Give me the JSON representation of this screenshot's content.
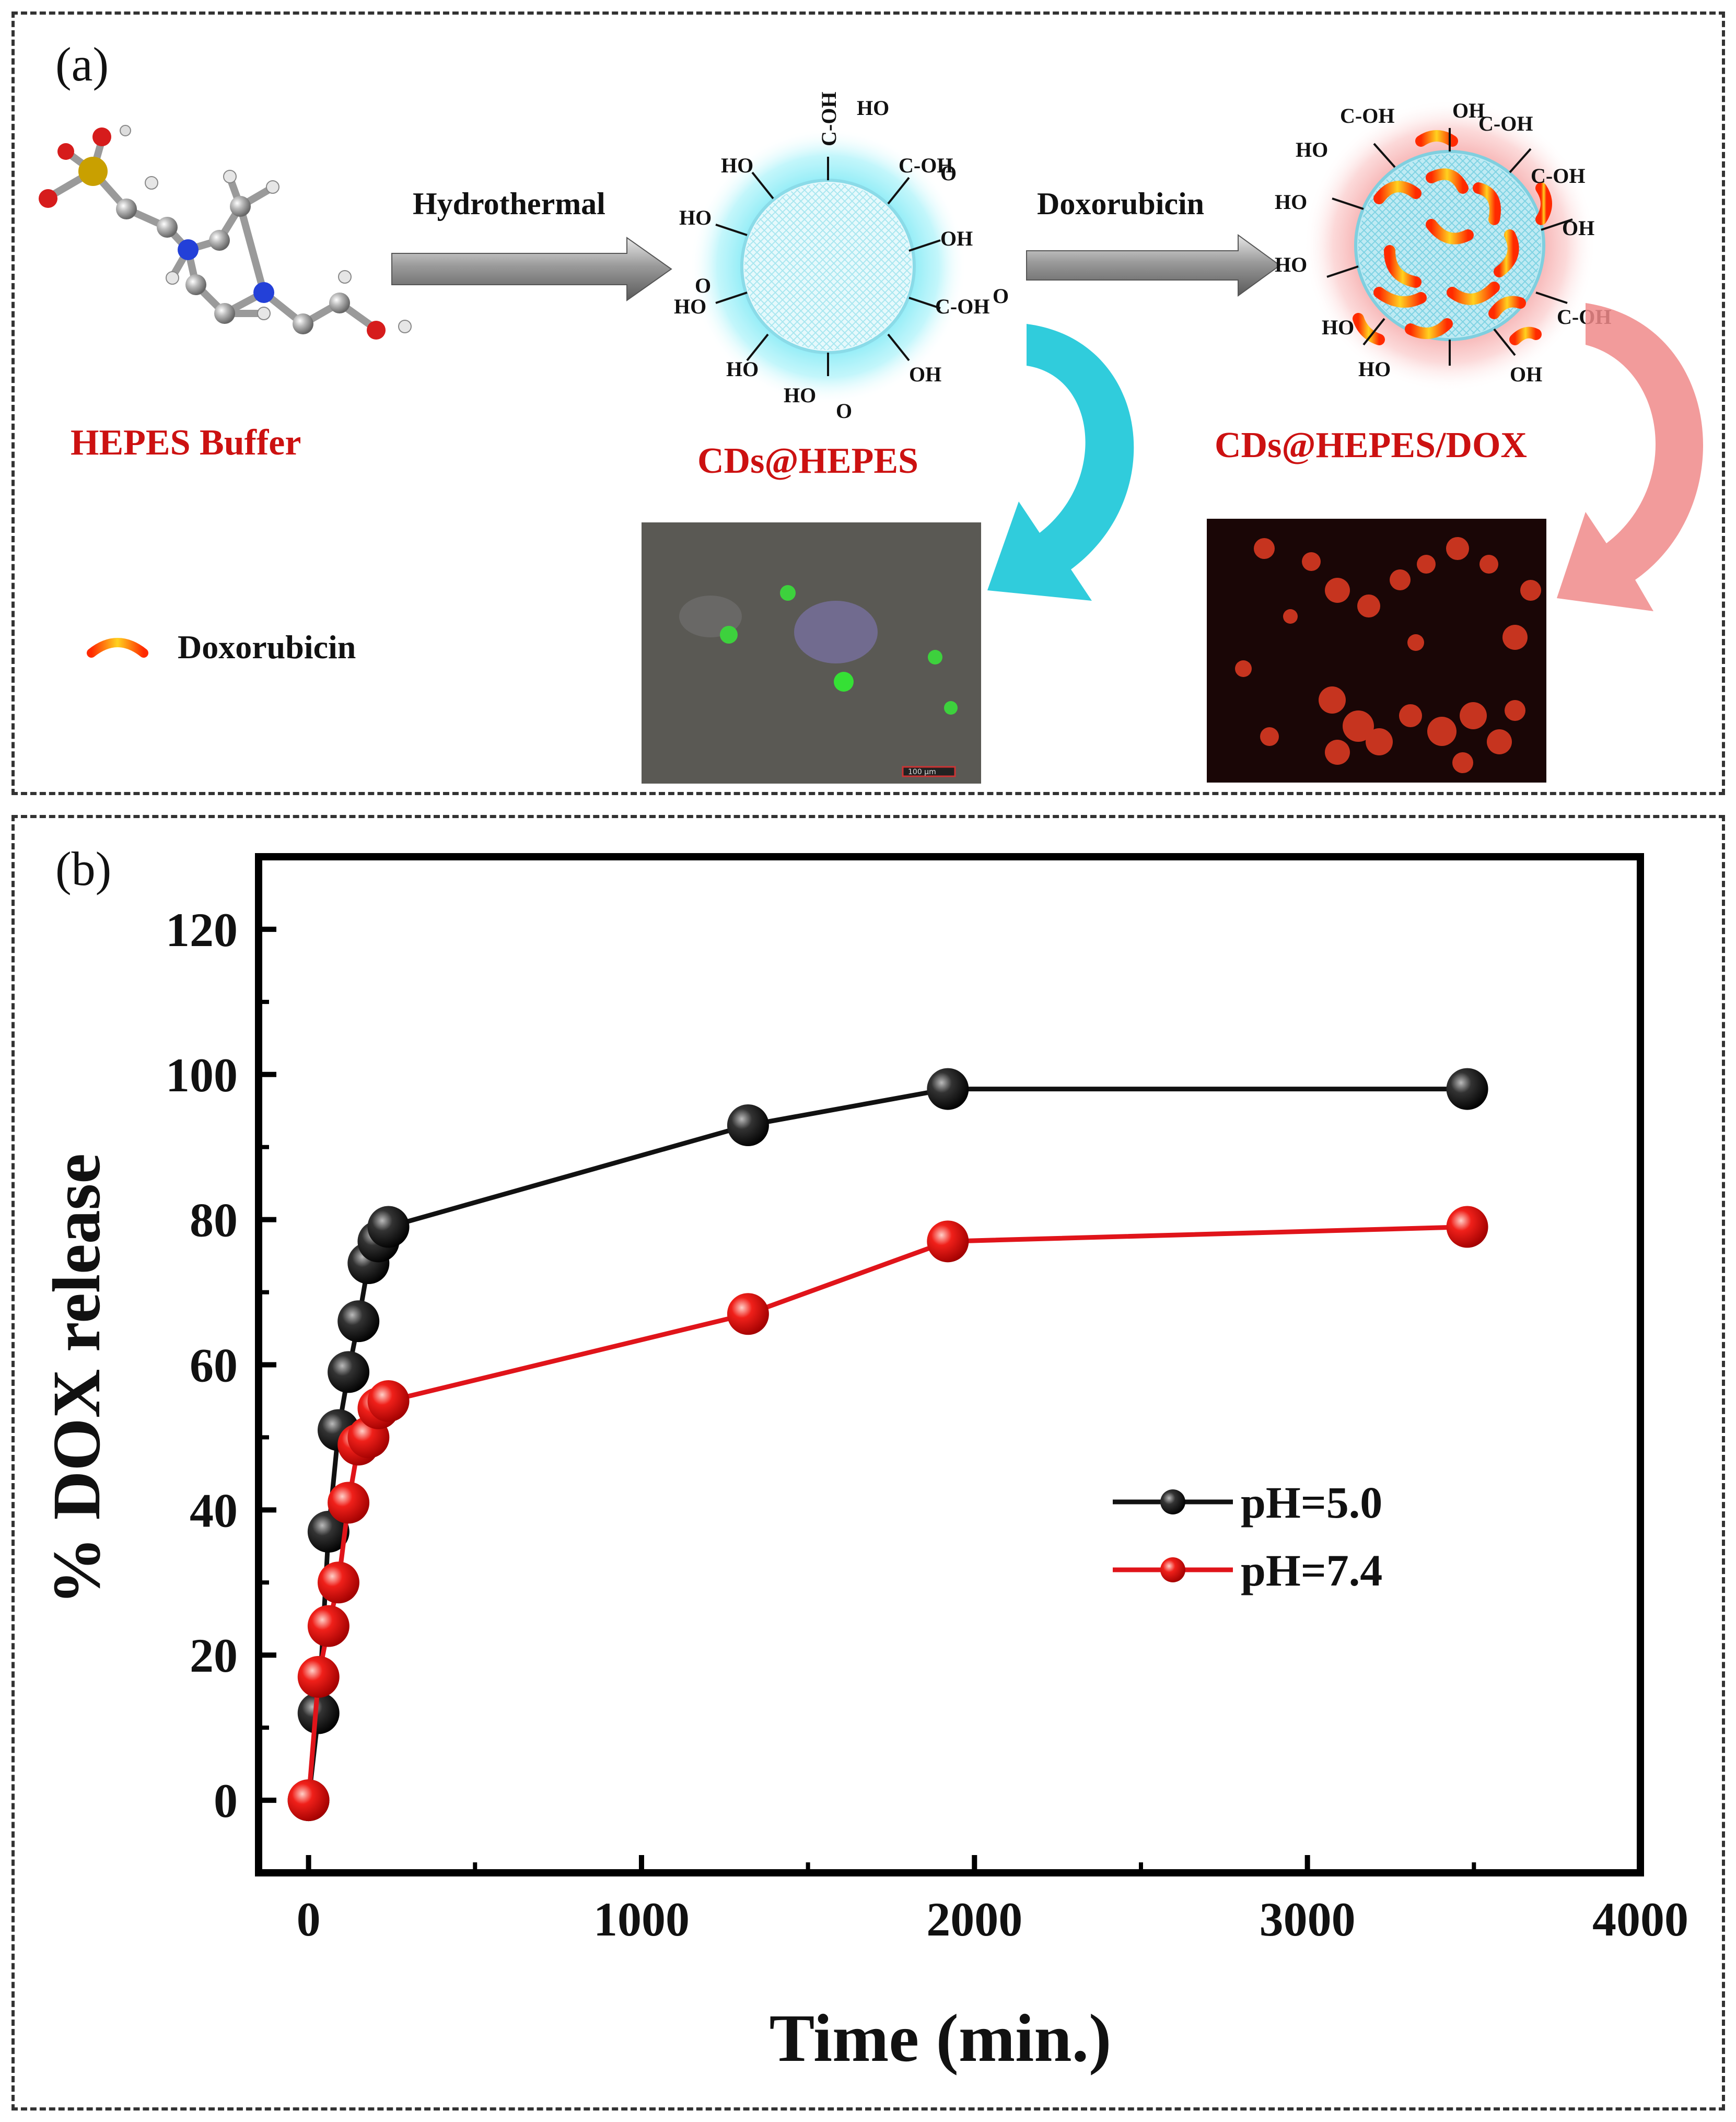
{
  "panel_a": {
    "label": "(a)",
    "hepes_label": "HEPES Buffer",
    "step1": "Hydrothermal",
    "step2": "Doxorubicin",
    "cd_label": "CDs@HEPES",
    "cd_dox_label": "CDs@HEPES/DOX",
    "legend_text": "Doxorubicin",
    "scale_bar_text": "100 µm",
    "chem": {
      "cooh": "C-OH",
      "oh": "OH",
      "ho": "HO",
      "o": "O"
    },
    "colors": {
      "cyan_glow": "#5fe0f0",
      "pink_glow": "#f7a0a0",
      "arrow_cyan": "#19c6d8",
      "arrow_pink": "#f08a8a",
      "title_red": "#cc1111",
      "dox_orange": "#f36a10",
      "dox_yellow": "#ffd21f"
    }
  },
  "panel_b": {
    "label": "(b)",
    "chart_data": {
      "type": "line",
      "xlabel": "Time (min.)",
      "ylabel": "% DOX release",
      "xlim": [
        -150,
        4000
      ],
      "ylim": [
        -10,
        130
      ],
      "xticks": [
        0,
        1000,
        2000,
        3000,
        4000
      ],
      "yticks": [
        0,
        20,
        40,
        60,
        80,
        100,
        120
      ],
      "legend_position": "center-right",
      "series": [
        {
          "name": "pH=5.0",
          "color": "#111111",
          "x": [
            0,
            30,
            60,
            90,
            120,
            150,
            180,
            210,
            240,
            1320,
            1920,
            3480
          ],
          "y": [
            0,
            12,
            37,
            51,
            59,
            66,
            74,
            77,
            79,
            93,
            98,
            98
          ]
        },
        {
          "name": "pH=7.4",
          "color": "#e0141a",
          "x": [
            0,
            30,
            60,
            90,
            120,
            150,
            180,
            210,
            240,
            1320,
            1920,
            3480
          ],
          "y": [
            0,
            17,
            24,
            30,
            41,
            49,
            50,
            54,
            55,
            67,
            77,
            79
          ]
        }
      ]
    }
  }
}
